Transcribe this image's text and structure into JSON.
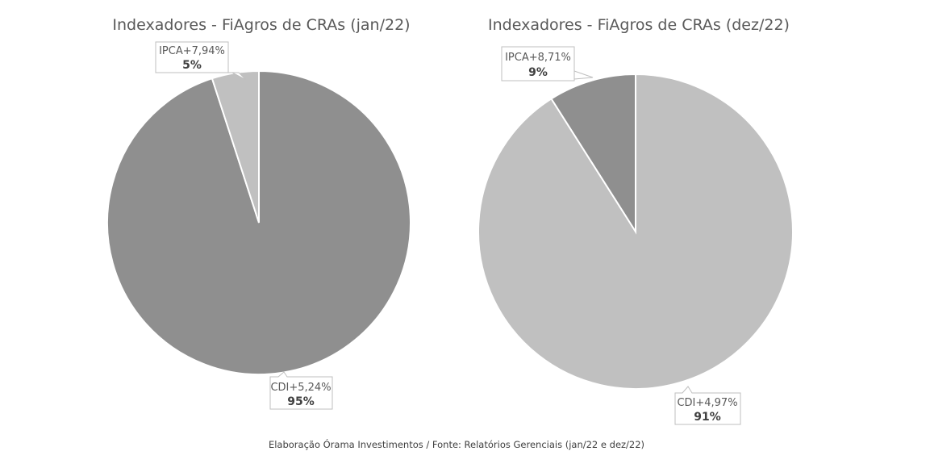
{
  "chart_data": [
    {
      "type": "pie",
      "title": "Indexadores - FiAgros de CRAs (jan/22)",
      "slices": [
        {
          "label": "CDI+5,24%",
          "value": 95,
          "value_label": "95%",
          "color": "#8f8f8f"
        },
        {
          "label": "IPCA+7,94%",
          "value": 5,
          "value_label": "5%",
          "color": "#c0c0c0"
        }
      ]
    },
    {
      "type": "pie",
      "title": "Indexadores - FiAgros de CRAs (dez/22)",
      "slices": [
        {
          "label": "CDI+4,97%",
          "value": 91,
          "value_label": "91%",
          "color": "#c0c0c0"
        },
        {
          "label": "IPCA+8,71%",
          "value": 9,
          "value_label": "9%",
          "color": "#8f8f8f"
        }
      ]
    }
  ],
  "source": "Elaboração Órama Investimentos / Fonte: Relatórios Gerenciais (jan/22 e dez/22)"
}
